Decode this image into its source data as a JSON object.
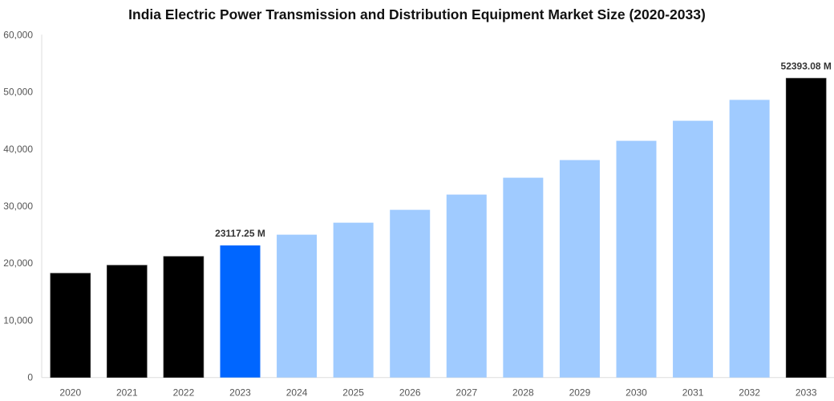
{
  "chart_data": {
    "type": "bar",
    "title": "India Electric Power Transmission and Distribution Equipment Market Size (2020-2033)",
    "xlabel": "",
    "ylabel": "",
    "ylim": [
      0,
      60000
    ],
    "yticks": [
      0,
      10000,
      20000,
      30000,
      40000,
      50000,
      60000
    ],
    "ytick_labels": [
      "0",
      "10,000",
      "20,000",
      "30,000",
      "40,000",
      "50,000",
      "60,000"
    ],
    "grid": false,
    "categories": [
      "2020",
      "2021",
      "2022",
      "2023",
      "2024",
      "2025",
      "2026",
      "2027",
      "2028",
      "2029",
      "2030",
      "2031",
      "2032",
      "2033"
    ],
    "values": [
      18260,
      19660,
      21200,
      23117.25,
      25000,
      27100,
      29350,
      32020,
      34970,
      38060,
      41430,
      44940,
      48600,
      52393.08
    ],
    "bar_colors": [
      "#000000",
      "#000000",
      "#000000",
      "#0066ff",
      "#a0cbff",
      "#a0cbff",
      "#a0cbff",
      "#a0cbff",
      "#a0cbff",
      "#a0cbff",
      "#a0cbff",
      "#a0cbff",
      "#a0cbff",
      "#000000"
    ],
    "data_labels": [
      {
        "category": "2023",
        "text": "23117.25 M"
      },
      {
        "category": "2033",
        "text": "52393.08 M"
      }
    ]
  }
}
